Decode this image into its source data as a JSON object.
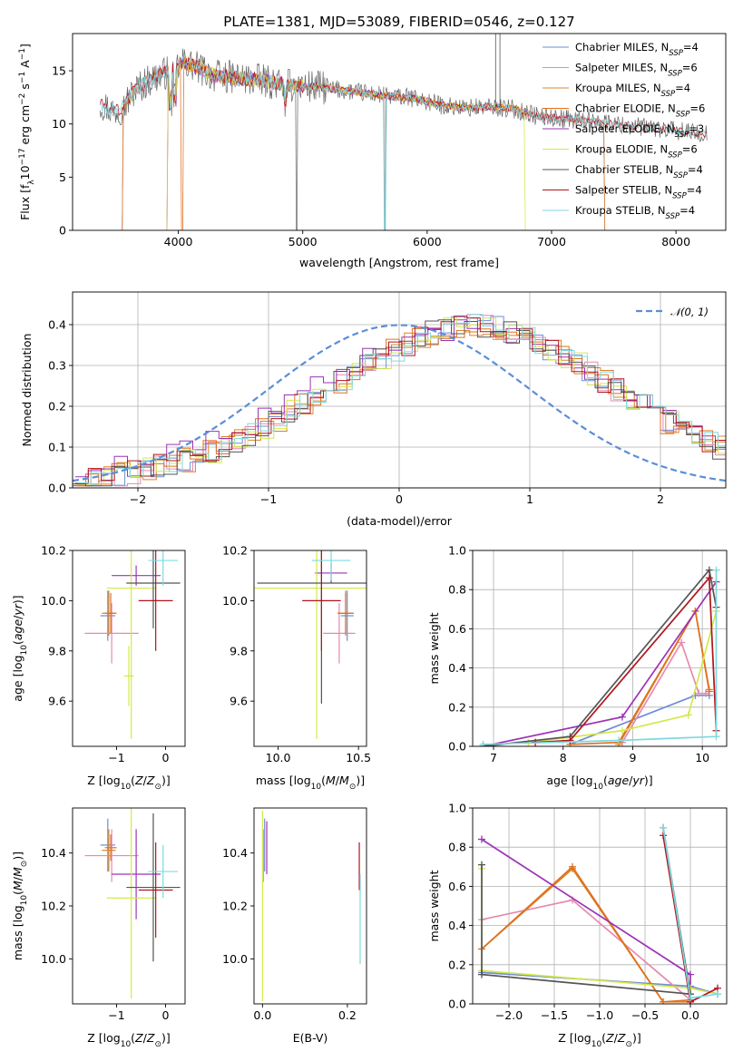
{
  "title": "PLATE=1381, MJD=53089, FIBERID=0546, z=0.127",
  "palette": {
    "chabrier_miles": "#6e8fd6",
    "salpeter_miles": "#e68ab0",
    "kroupa_miles": "#d9842a",
    "chabrier_elodie": "#e0701e",
    "salpeter_elodie": "#9c33b6",
    "kroupa_elodie": "#d4e84a",
    "chabrier_stelib": "#555555",
    "salpeter_stelib": "#b0151c",
    "kroupa_stelib": "#7dd9e0",
    "normal": "#5b8ed8"
  },
  "legend_entries": [
    {
      "id": "chabrier_miles",
      "label": "Chabrier MILES, N",
      "sub": "SSP",
      "suffix": "=4"
    },
    {
      "id": "salpeter_miles",
      "label": "Salpeter MILES, N",
      "sub": "SSP",
      "suffix": "=6"
    },
    {
      "id": "kroupa_miles",
      "label": "Kroupa MILES, N",
      "sub": "SSP",
      "suffix": "=4"
    },
    {
      "id": "chabrier_elodie",
      "label": "Chabrier ELODIE, N",
      "sub": "SSP",
      "suffix": "=6"
    },
    {
      "id": "salpeter_elodie",
      "label": "Salpeter ELODIE, N",
      "sub": "SSP",
      "suffix": "=3"
    },
    {
      "id": "kroupa_elodie",
      "label": "Kroupa ELODIE, N",
      "sub": "SSP",
      "suffix": "=6"
    },
    {
      "id": "chabrier_stelib",
      "label": "Chabrier STELIB, N",
      "sub": "SSP",
      "suffix": "=4"
    },
    {
      "id": "salpeter_stelib",
      "label": "Salpeter STELIB, N",
      "sub": "SSP",
      "suffix": "=4"
    },
    {
      "id": "kroupa_stelib",
      "label": "Kroupa STELIB, N",
      "sub": "SSP",
      "suffix": "=4"
    }
  ],
  "chart_data": [
    {
      "id": "spectrum",
      "type": "line",
      "title": "PLATE=1381, MJD=53089, FIBERID=0546, z=0.127",
      "xlabel": "wavelength [Angstrom, rest frame]",
      "ylabel": "Flux [f_λ 10^-17 erg cm^-2 s^-1 A^-1]",
      "xlim": [
        3150,
        8400
      ],
      "ylim": [
        0,
        18.5
      ],
      "xticks": [
        4000,
        5000,
        6000,
        7000,
        8000
      ],
      "yticks": [
        0,
        5,
        10,
        15
      ],
      "legend": "upper right",
      "continuum": [
        [
          3370,
          12.0
        ],
        [
          3480,
          11.2
        ],
        [
          3560,
          11.6
        ],
        [
          3650,
          13.2
        ],
        [
          3750,
          14.0
        ],
        [
          3850,
          14.6
        ],
        [
          3950,
          15.0
        ],
        [
          4050,
          15.8
        ],
        [
          4150,
          15.3
        ],
        [
          4300,
          14.5
        ],
        [
          4500,
          14.3
        ],
        [
          4700,
          14.0
        ],
        [
          4900,
          13.6
        ],
        [
          5100,
          13.5
        ],
        [
          5300,
          13.2
        ],
        [
          5500,
          12.9
        ],
        [
          5700,
          12.6
        ],
        [
          5900,
          12.4
        ],
        [
          6100,
          11.8
        ],
        [
          6300,
          11.5
        ],
        [
          6500,
          11.6
        ],
        [
          6700,
          11.4
        ],
        [
          6900,
          10.7
        ],
        [
          7100,
          10.5
        ],
        [
          7300,
          10.3
        ],
        [
          7500,
          10.0
        ],
        [
          7700,
          9.7
        ],
        [
          7900,
          9.5
        ],
        [
          8100,
          9.2
        ],
        [
          8250,
          9.0
        ]
      ],
      "model_ranges": {
        "chabrier_miles": [
          3540,
          7430
        ],
        "salpeter_miles": [
          3540,
          7430
        ],
        "kroupa_miles": [
          3540,
          7430
        ],
        "chabrier_elodie": [
          3900,
          6800
        ],
        "salpeter_elodie": [
          3900,
          6800
        ],
        "kroupa_elodie": [
          3900,
          6800
        ],
        "chabrier_stelib": [
          3370,
          8250
        ],
        "salpeter_stelib": [
          3370,
          8250
        ],
        "kroupa_stelib": [
          3370,
          8250
        ]
      }
    },
    {
      "id": "residual_hist",
      "type": "histogram",
      "xlabel": "(data-model)/error",
      "ylabel": "Normed distribution",
      "xlim": [
        -2.5,
        2.5
      ],
      "ylim": [
        0,
        0.48
      ],
      "xticks": [
        -2,
        -1,
        0,
        1,
        2
      ],
      "yticks": [
        0.0,
        0.1,
        0.2,
        0.3,
        0.4
      ],
      "legend_label": "N(0,1)",
      "bin_width": 0.1,
      "bin_start": -2.5,
      "reference_values": [
        0.018,
        0.022,
        0.026,
        0.032,
        0.038,
        0.044,
        0.052,
        0.06,
        0.068,
        0.08,
        0.09,
        0.104,
        0.118,
        0.132,
        0.15,
        0.166,
        0.186,
        0.206,
        0.224,
        0.244,
        0.262,
        0.282,
        0.3,
        0.32,
        0.336,
        0.352,
        0.368,
        0.38,
        0.388,
        0.394,
        0.398,
        0.396,
        0.392,
        0.384,
        0.372,
        0.358,
        0.342,
        0.322,
        0.304,
        0.282,
        0.262,
        0.242,
        0.222,
        0.202,
        0.182,
        0.162,
        0.146,
        0.128,
        0.114,
        0.1
      ]
    },
    {
      "id": "age_vs_Z",
      "type": "errorbar",
      "xlabel": "Z [log10(Z/Z⊙)]",
      "ylabel": "age [log10(age/yr)]",
      "xlim": [
        -1.9,
        0.4
      ],
      "ylim": [
        9.42,
        10.2
      ],
      "xticks": [
        -1,
        0
      ],
      "yticks": [
        9.6,
        9.8,
        10.0,
        10.2
      ],
      "points": [
        {
          "model": "chabrier_miles",
          "x": -1.18,
          "xerr": 0.15,
          "y": 9.94,
          "yerr": 0.1
        },
        {
          "model": "salpeter_miles",
          "x": -1.1,
          "xerr": 0.55,
          "y": 9.87,
          "yerr": 0.12
        },
        {
          "model": "kroupa_miles",
          "x": -1.16,
          "xerr": 0.14,
          "y": 9.95,
          "yerr": 0.09
        },
        {
          "model": "chabrier_elodie",
          "x": -1.12,
          "xerr": 0.12,
          "y": 9.95,
          "yerr": 0.08
        },
        {
          "model": "salpeter_elodie",
          "x": -0.6,
          "xerr": 0.5,
          "y": 10.1,
          "yerr": 0.04
        },
        {
          "model": "kroupa_elodie",
          "x": -0.7,
          "xerr": 0.5,
          "y": 10.05,
          "yerr": 0.6
        },
        {
          "model": "chabrier_stelib",
          "x": -0.25,
          "xerr": 0.55,
          "y": 10.07,
          "yerr": 0.18
        },
        {
          "model": "salpeter_stelib",
          "x": -0.2,
          "xerr": 0.35,
          "y": 10.0,
          "yerr": 0.2
        },
        {
          "model": "kroupa_stelib",
          "x": -0.05,
          "xerr": 0.3,
          "y": 10.16,
          "yerr": 0.1
        },
        {
          "model": "kroupa_elodie",
          "x": -0.75,
          "xerr": 0.1,
          "y": 9.7,
          "yerr": 0.12
        }
      ]
    },
    {
      "id": "age_vs_mass",
      "type": "errorbar",
      "xlabel": "mass [log10(M/M⊙)]",
      "ylabel": "",
      "xlim": [
        9.85,
        10.55
      ],
      "ylim": [
        9.42,
        10.2
      ],
      "xticks": [
        10.0,
        10.5
      ],
      "yticks": [
        9.6,
        9.8,
        10.0,
        10.2
      ],
      "points": [
        {
          "model": "chabrier_miles",
          "x": 10.43,
          "xerr": 0.04,
          "y": 9.94,
          "yerr": 0.1
        },
        {
          "model": "salpeter_miles",
          "x": 10.38,
          "xerr": 0.1,
          "y": 9.87,
          "yerr": 0.12
        },
        {
          "model": "kroupa_miles",
          "x": 10.42,
          "xerr": 0.05,
          "y": 9.95,
          "yerr": 0.09
        },
        {
          "model": "chabrier_elodie",
          "x": 10.42,
          "xerr": 0.05,
          "y": 9.95,
          "yerr": 0.08
        },
        {
          "model": "salpeter_elodie",
          "x": 10.33,
          "xerr": 0.1,
          "y": 10.11,
          "yerr": 0.04
        },
        {
          "model": "kroupa_elodie",
          "x": 10.24,
          "xerr": 0.4,
          "y": 10.05,
          "yerr": 0.6
        },
        {
          "model": "chabrier_stelib",
          "x": 10.27,
          "xerr": 0.4,
          "y": 10.07,
          "yerr": 0.48
        },
        {
          "model": "salpeter_stelib",
          "x": 10.27,
          "xerr": 0.12,
          "y": 10.0,
          "yerr": 0.2
        },
        {
          "model": "kroupa_stelib",
          "x": 10.33,
          "xerr": 0.12,
          "y": 10.16,
          "yerr": 0.08
        }
      ]
    },
    {
      "id": "weight_vs_age",
      "type": "line",
      "xlabel": "age [log10(age/yr)]",
      "ylabel": "mass weight",
      "xlim": [
        6.7,
        10.35
      ],
      "ylim": [
        0,
        1.0
      ],
      "xticks": [
        7,
        8,
        9,
        10
      ],
      "yticks": [
        0.0,
        0.2,
        0.4,
        0.6,
        0.8,
        1.0
      ],
      "grid": true,
      "series": [
        {
          "model": "chabrier_miles",
          "points": [
            [
              8.1,
              0.01
            ],
            [
              9.9,
              0.26
            ],
            [
              10.1,
              0.26
            ]
          ]
        },
        {
          "model": "salpeter_miles",
          "points": [
            [
              8.85,
              0.02
            ],
            [
              9.7,
              0.53
            ],
            [
              9.95,
              0.27
            ],
            [
              10.05,
              0.27
            ]
          ]
        },
        {
          "model": "kroupa_miles",
          "points": [
            [
              8.8,
              0.01
            ],
            [
              9.9,
              0.69
            ],
            [
              10.1,
              0.29
            ]
          ]
        },
        {
          "model": "chabrier_elodie",
          "points": [
            [
              8.1,
              0.01
            ],
            [
              8.8,
              0.02
            ],
            [
              9.9,
              0.69
            ],
            [
              10.1,
              0.28
            ]
          ]
        },
        {
          "model": "salpeter_elodie",
          "points": [
            [
              6.85,
              0.0
            ],
            [
              8.85,
              0.15
            ],
            [
              10.2,
              0.84
            ]
          ]
        },
        {
          "model": "kroupa_elodie",
          "points": [
            [
              7.5,
              0.02
            ],
            [
              8.85,
              0.08
            ],
            [
              9.8,
              0.16
            ],
            [
              10.2,
              0.69
            ]
          ]
        },
        {
          "model": "chabrier_stelib",
          "points": [
            [
              6.85,
              0.0
            ],
            [
              8.1,
              0.05
            ],
            [
              10.1,
              0.9
            ],
            [
              10.2,
              0.71
            ]
          ]
        },
        {
          "model": "salpeter_stelib",
          "points": [
            [
              7.6,
              0.02
            ],
            [
              8.1,
              0.03
            ],
            [
              10.1,
              0.86
            ],
            [
              10.2,
              0.08
            ]
          ]
        },
        {
          "model": "kroupa_stelib",
          "points": [
            [
              6.85,
              0.01
            ],
            [
              8.8,
              0.03
            ],
            [
              10.2,
              0.05
            ],
            [
              10.2,
              0.9
            ]
          ]
        }
      ]
    },
    {
      "id": "mass_vs_Z",
      "type": "errorbar",
      "xlabel": "Z [log10(Z/Z⊙)]",
      "ylabel": "mass [log10(M/M⊙)]",
      "xlim": [
        -1.9,
        0.4
      ],
      "ylim": [
        9.83,
        10.57
      ],
      "xticks": [
        -1,
        0
      ],
      "yticks": [
        10.0,
        10.2,
        10.4
      ],
      "points": [
        {
          "model": "chabrier_miles",
          "x": -1.18,
          "xerr": 0.15,
          "y": 10.43,
          "yerr": 0.1
        },
        {
          "model": "salpeter_miles",
          "x": -1.1,
          "xerr": 0.55,
          "y": 10.39,
          "yerr": 0.1
        },
        {
          "model": "kroupa_miles",
          "x": -1.16,
          "xerr": 0.14,
          "y": 10.41,
          "yerr": 0.08
        },
        {
          "model": "chabrier_elodie",
          "x": -1.12,
          "xerr": 0.12,
          "y": 10.42,
          "yerr": 0.05
        },
        {
          "model": "salpeter_elodie",
          "x": -0.6,
          "xerr": 0.5,
          "y": 10.32,
          "yerr": 0.17
        },
        {
          "model": "kroupa_elodie",
          "x": -0.7,
          "xerr": 0.5,
          "y": 10.23,
          "yerr": 0.38
        },
        {
          "model": "chabrier_stelib",
          "x": -0.25,
          "xerr": 0.55,
          "y": 10.27,
          "yerr": 0.28
        },
        {
          "model": "salpeter_stelib",
          "x": -0.2,
          "xerr": 0.35,
          "y": 10.26,
          "yerr": 0.18
        },
        {
          "model": "kroupa_stelib",
          "x": -0.05,
          "xerr": 0.3,
          "y": 10.33,
          "yerr": 0.1
        }
      ]
    },
    {
      "id": "mass_vs_ebv",
      "type": "errorbar",
      "xlabel": "E(B-V)",
      "ylabel": "",
      "xlim": [
        -0.02,
        0.245
      ],
      "ylim": [
        9.83,
        10.57
      ],
      "xticks": [
        0.0,
        0.2
      ],
      "yticks": [
        10.0,
        10.2,
        10.4
      ],
      "points": [
        {
          "model": "chabrier_miles",
          "x": 0.005,
          "xerr": 0.0,
          "y": 10.43,
          "yerr": 0.1
        },
        {
          "model": "salpeter_miles",
          "x": 0.002,
          "xerr": 0.0,
          "y": 10.39,
          "yerr": 0.1
        },
        {
          "model": "salpeter_elodie",
          "x": 0.01,
          "xerr": 0.0,
          "y": 10.42,
          "yerr": 0.1
        },
        {
          "model": "kroupa_elodie",
          "x": 0.0,
          "xerr": 0.0,
          "y": 10.2,
          "yerr": 0.36
        },
        {
          "model": "salpeter_stelib",
          "x": 0.228,
          "xerr": 0.0,
          "y": 10.35,
          "yerr": 0.09
        },
        {
          "model": "kroupa_stelib",
          "x": 0.23,
          "xerr": 0.0,
          "y": 10.15,
          "yerr": 0.17
        }
      ]
    },
    {
      "id": "weight_vs_Z",
      "type": "line",
      "xlabel": "Z [log10(Z/Z⊙)]",
      "ylabel": "mass weight",
      "xlim": [
        -2.4,
        0.4
      ],
      "ylim": [
        0,
        1.0
      ],
      "xticks": [
        -2.0,
        -1.5,
        -1.0,
        -0.5,
        0.0
      ],
      "yticks": [
        0.0,
        0.2,
        0.4,
        0.6,
        0.8,
        1.0
      ],
      "grid": true,
      "series": [
        {
          "model": "chabrier_miles",
          "points": [
            [
              -2.3,
              0.16
            ],
            [
              0.0,
              0.09
            ],
            [
              0.3,
              0.05
            ]
          ]
        },
        {
          "model": "salpeter_miles",
          "points": [
            [
              -2.3,
              0.43
            ],
            [
              -1.3,
              0.53
            ],
            [
              0.0,
              0.02
            ]
          ]
        },
        {
          "model": "kroupa_miles",
          "points": [
            [
              -2.3,
              0.28
            ],
            [
              -1.3,
              0.69
            ],
            [
              -0.3,
              0.01
            ],
            [
              0.0,
              0.01
            ]
          ]
        },
        {
          "model": "chabrier_elodie",
          "points": [
            [
              -2.3,
              0.28
            ],
            [
              -1.3,
              0.7
            ],
            [
              -0.3,
              0.01
            ],
            [
              0.0,
              0.02
            ]
          ]
        },
        {
          "model": "salpeter_elodie",
          "points": [
            [
              -2.3,
              0.84
            ],
            [
              0.0,
              0.15
            ],
            [
              0.0,
              0.01
            ]
          ]
        },
        {
          "model": "kroupa_elodie",
          "points": [
            [
              -2.3,
              0.69
            ],
            [
              -2.3,
              0.17
            ],
            [
              0.0,
              0.08
            ],
            [
              0.3,
              0.05
            ]
          ]
        },
        {
          "model": "chabrier_stelib",
          "points": [
            [
              -2.3,
              0.71
            ],
            [
              -2.3,
              0.15
            ],
            [
              0.0,
              0.05
            ],
            [
              -0.3,
              0.9
            ]
          ]
        },
        {
          "model": "salpeter_stelib",
          "points": [
            [
              -0.3,
              0.86
            ],
            [
              0.0,
              0.01
            ],
            [
              0.3,
              0.08
            ]
          ]
        },
        {
          "model": "kroupa_stelib",
          "points": [
            [
              -0.3,
              0.9
            ],
            [
              0.0,
              0.03
            ],
            [
              0.3,
              0.05
            ]
          ]
        }
      ]
    }
  ]
}
